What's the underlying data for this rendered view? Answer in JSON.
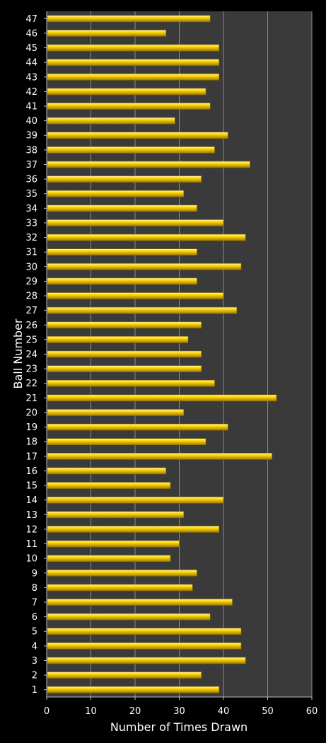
{
  "chart_data": {
    "type": "bar",
    "orientation": "horizontal",
    "title": "",
    "xlabel": "Number of Times Drawn",
    "ylabel": "Ball Number",
    "xlim": [
      0,
      60
    ],
    "xticks": [
      0,
      10,
      20,
      30,
      40,
      50,
      60
    ],
    "grid": true,
    "legend": "none",
    "categories": [
      "1",
      "2",
      "3",
      "4",
      "5",
      "6",
      "7",
      "8",
      "9",
      "10",
      "11",
      "12",
      "13",
      "14",
      "15",
      "16",
      "17",
      "18",
      "19",
      "20",
      "21",
      "22",
      "23",
      "24",
      "25",
      "26",
      "27",
      "28",
      "29",
      "30",
      "31",
      "32",
      "33",
      "34",
      "35",
      "36",
      "37",
      "38",
      "39",
      "40",
      "41",
      "42",
      "43",
      "44",
      "45",
      "46",
      "47"
    ],
    "values": [
      39,
      35,
      45,
      44,
      44,
      37,
      42,
      33,
      34,
      28,
      30,
      39,
      31,
      40,
      28,
      27,
      51,
      36,
      41,
      31,
      52,
      38,
      35,
      35,
      32,
      35,
      43,
      40,
      34,
      44,
      34,
      45,
      40,
      34,
      31,
      35,
      46,
      38,
      41,
      29,
      37,
      36,
      39,
      39,
      39,
      27,
      37
    ],
    "colors": {
      "bar": "#ffd700",
      "bar_highlight": "#fff3a0",
      "bar_shadow": "#b08a00",
      "plot_bg": "#3a3a3a",
      "grid": "#8a8a8a",
      "page_bg": "#000000",
      "text": "#ffffff"
    }
  }
}
